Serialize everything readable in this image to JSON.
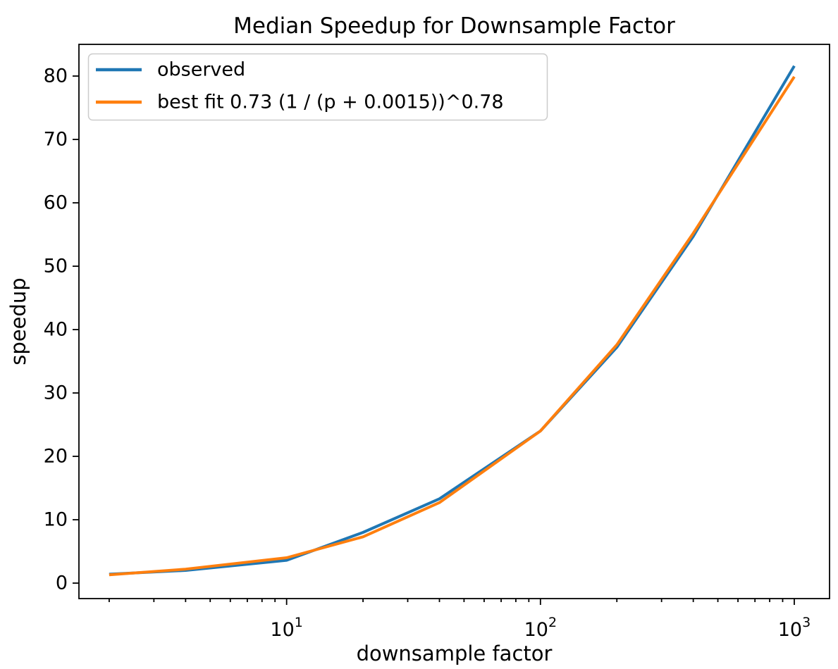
{
  "chart_data": {
    "type": "line",
    "title": "Median Speedup for Downsample Factor",
    "xlabel": "downsample factor",
    "ylabel": "speedup",
    "x_scale": "log",
    "grid": false,
    "background": "#ffffff",
    "axis_color": "#000000",
    "x": [
      2,
      4,
      10,
      20,
      40,
      100,
      200,
      400,
      1000
    ],
    "series": [
      {
        "name": "observed",
        "slug": "observed",
        "color": "#1f77b4",
        "values": [
          1.4,
          2.0,
          3.6,
          8.0,
          13.3,
          24.0,
          37.2,
          54.7,
          81.6
        ]
      },
      {
        "name": "best fit 0.73 (1 / (p + 0.0015))^0.78",
        "slug": "best-fit",
        "color": "#ff7f0e",
        "values": [
          1.3,
          2.2,
          4.0,
          7.3,
          12.7,
          24.0,
          37.6,
          55.2,
          79.9
        ]
      }
    ],
    "xlim": [
      1.52,
      1377
    ],
    "ylim": [
      -2.44,
      85.0
    ],
    "y_ticks": [
      0,
      10,
      20,
      30,
      40,
      50,
      60,
      70,
      80
    ],
    "x_major_ticks": [
      {
        "value": 10,
        "base": "10",
        "exponent": "1"
      },
      {
        "value": 100,
        "base": "10",
        "exponent": "2"
      },
      {
        "value": 1000,
        "base": "10",
        "exponent": "3"
      }
    ],
    "x_minor_ticks": [
      2,
      3,
      4,
      5,
      6,
      7,
      8,
      9,
      20,
      30,
      40,
      50,
      60,
      70,
      80,
      90,
      200,
      300,
      400,
      500,
      600,
      700,
      800,
      900
    ],
    "legend": {
      "position": "upper left",
      "border_color": "#cccccc",
      "entries": [
        "observed",
        "best fit 0.73 (1 / (p + 0.0015))^0.78"
      ]
    }
  }
}
